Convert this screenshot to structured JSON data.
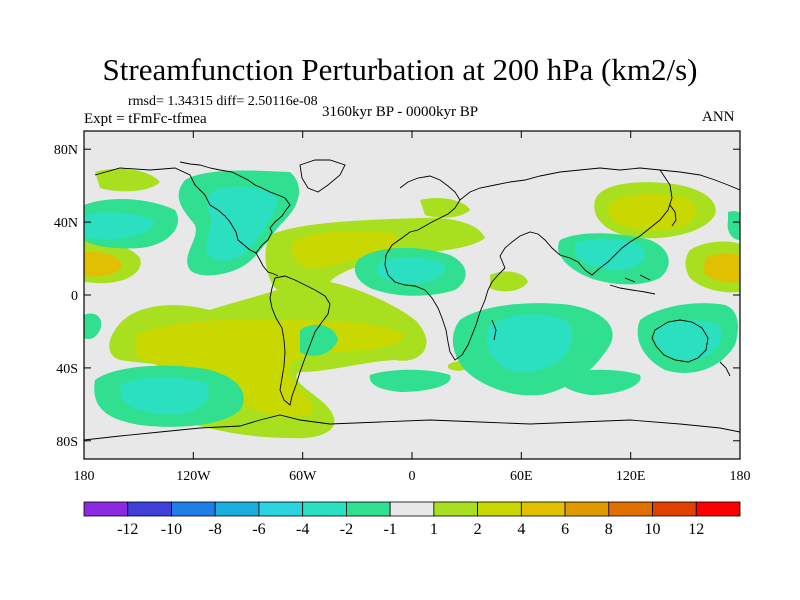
{
  "title": "Streamfunction Perturbation at 200 hPa (km2/s)",
  "stats": "rmsd= 1.34315  diff= 2.50116e-08",
  "experiment": "Expt = tFmFc-tfmea",
  "period": "3160kyr BP - 0000kyr BP",
  "season": "ANN",
  "map": {
    "projection": "cylindrical equidistant",
    "lon_range": [
      -180,
      180
    ],
    "lat_range": [
      -90,
      90
    ],
    "x_ticks": [
      {
        "value": -180,
        "label": "180"
      },
      {
        "value": -120,
        "label": "120W"
      },
      {
        "value": -60,
        "label": "60W"
      },
      {
        "value": 0,
        "label": "0"
      },
      {
        "value": 60,
        "label": "60E"
      },
      {
        "value": 120,
        "label": "120E"
      },
      {
        "value": 180,
        "label": "180"
      }
    ],
    "y_ticks": [
      {
        "value": 80,
        "label": "80N"
      },
      {
        "value": 40,
        "label": "40N"
      },
      {
        "value": 0,
        "label": "0"
      },
      {
        "value": -40,
        "label": "40S"
      },
      {
        "value": -80,
        "label": "80S"
      }
    ]
  },
  "colorbar": {
    "colors": [
      "#8a2be2",
      "#3f3fd9",
      "#1e7fe8",
      "#1aaee0",
      "#2bd2e0",
      "#2be0c0",
      "#30e090",
      "#e8e8e8",
      "#a8e020",
      "#c8d800",
      "#e0c000",
      "#e09a00",
      "#e07000",
      "#e04000",
      "#ff0000"
    ],
    "labels": [
      "-12",
      "-10",
      "-8",
      "-6",
      "-4",
      "-2",
      "-1",
      "1",
      "2",
      "4",
      "6",
      "8",
      "10",
      "12"
    ]
  },
  "field": {
    "levels": [
      {
        "value": "-4",
        "color": "#2bd2e0"
      },
      {
        "value": "-2",
        "color": "#2be0c0"
      },
      {
        "value": "-1",
        "color": "#30e090"
      },
      {
        "value": "1",
        "color": "#a8e020"
      },
      {
        "value": "2",
        "color": "#c8d800"
      },
      {
        "value": "4",
        "color": "#e0c000"
      }
    ],
    "background": "#e8e8e8"
  }
}
